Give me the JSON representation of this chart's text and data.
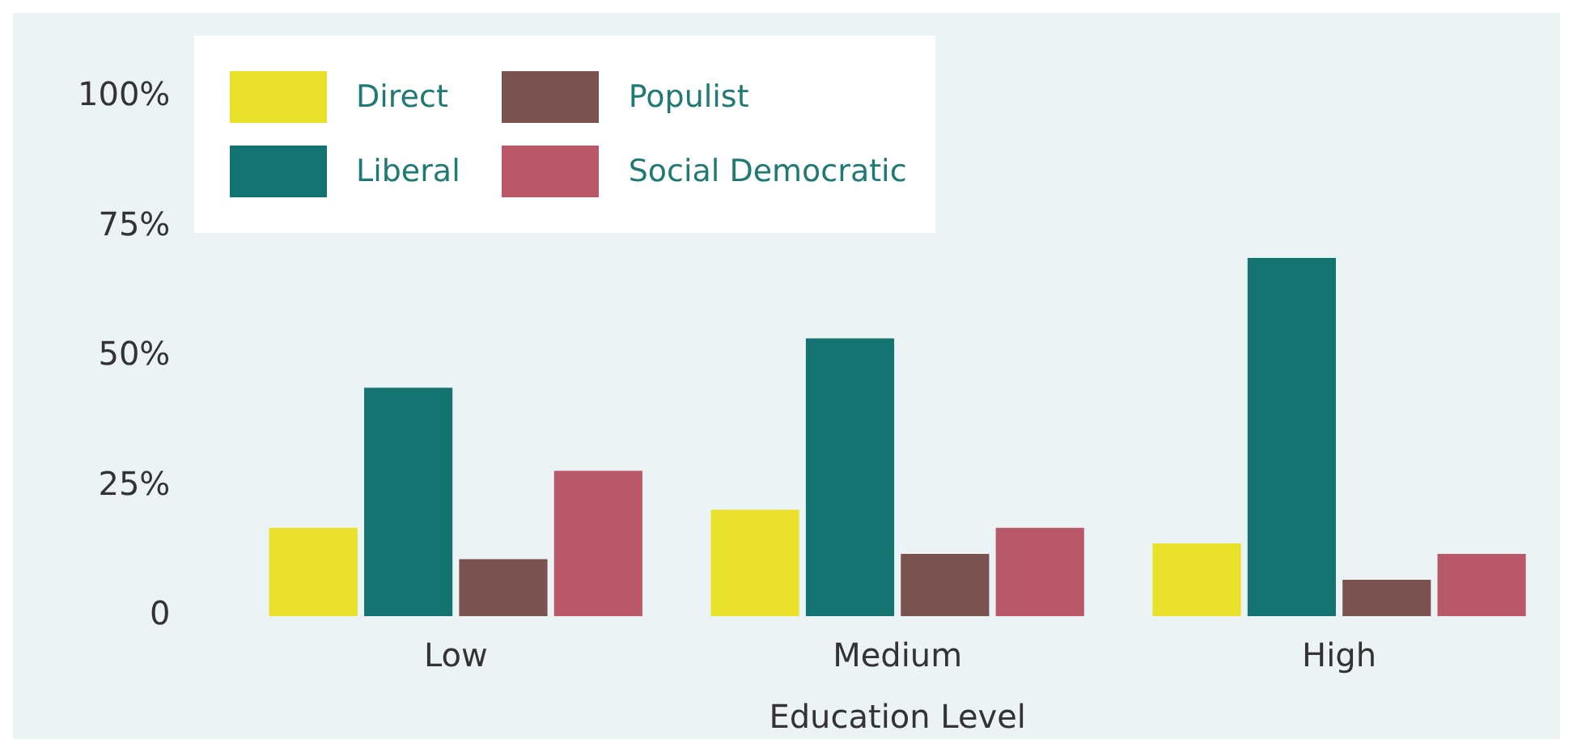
{
  "chart_data": {
    "type": "bar",
    "xlabel": "Education Level",
    "categories": [
      "Low",
      "Medium",
      "High"
    ],
    "series": [
      {
        "name": "Direct",
        "color": "#e8e02a",
        "values": [
          17,
          20.5,
          14
        ]
      },
      {
        "name": "Liberal",
        "color": "#137370",
        "values": [
          44,
          53.5,
          69
        ]
      },
      {
        "name": "Populist",
        "color": "#7a5250",
        "values": [
          11,
          12,
          7
        ]
      },
      {
        "name": "Social Democratic",
        "color": "#b85868",
        "values": [
          28,
          17,
          12
        ]
      }
    ],
    "ylim": [
      0,
      100
    ],
    "yticks": [
      {
        "value": 0,
        "label": "0"
      },
      {
        "value": 25,
        "label": "25%"
      },
      {
        "value": 50,
        "label": "50%"
      },
      {
        "value": 75,
        "label": "75%"
      },
      {
        "value": 100,
        "label": "100%"
      }
    ],
    "grid": false,
    "legend": "top left"
  }
}
